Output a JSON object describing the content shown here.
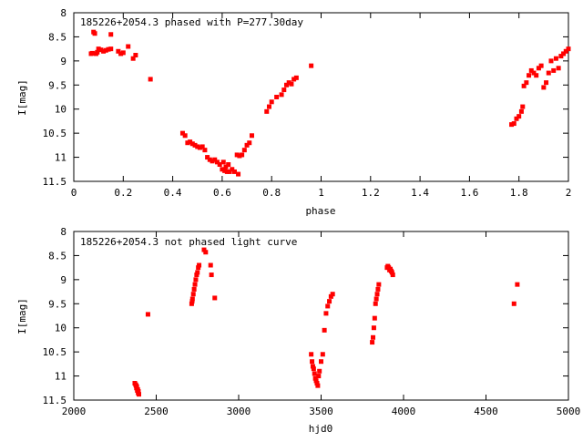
{
  "chart_data": [
    {
      "type": "scatter",
      "title": "185226+2054.3 phased with P=277.30day",
      "xlabel": "phase",
      "ylabel": "I[mag]",
      "xlim": [
        0,
        2
      ],
      "ylim": [
        11.5,
        8
      ],
      "y_inverted": true,
      "grid": false,
      "legend": "none",
      "xticks": [
        "0",
        "0.2",
        "0.4",
        "0.6",
        "0.8",
        "1",
        "1.2",
        "1.4",
        "1.6",
        "1.8",
        "2"
      ],
      "xtick_values": [
        0,
        0.2,
        0.4,
        0.6,
        0.8,
        1,
        1.2,
        1.4,
        1.6,
        1.8,
        2
      ],
      "yticks": [
        "8",
        "8.5",
        "9",
        "9.5",
        "10",
        "10.5",
        "11",
        "11.5"
      ],
      "ytick_values": [
        8,
        8.5,
        9,
        9.5,
        10,
        10.5,
        11,
        11.5
      ],
      "marker_color": "#ff0000",
      "series": [
        {
          "x": [
            0.07,
            0.075,
            0.08,
            0.085,
            0.09,
            0.095,
            0.1,
            0.11,
            0.12,
            0.13,
            0.14,
            0.15,
            0.15,
            0.18,
            0.19,
            0.2,
            0.22,
            0.24,
            0.25,
            0.31,
            0.44,
            0.45,
            0.46,
            0.47,
            0.48,
            0.49,
            0.5,
            0.51,
            0.52,
            0.53,
            0.54,
            0.55,
            0.56,
            0.57,
            0.58,
            0.59,
            0.6,
            0.605,
            0.61,
            0.615,
            0.62,
            0.625,
            0.63,
            0.64,
            0.65,
            0.66,
            0.665,
            0.67,
            0.68,
            0.69,
            0.7,
            0.71,
            0.72,
            0.78,
            0.79,
            0.8,
            0.82,
            0.84,
            0.85,
            0.86,
            0.87,
            0.88,
            0.89,
            0.9,
            0.96,
            1.77,
            1.78,
            1.79,
            1.8,
            1.81,
            1.815,
            1.82,
            1.83,
            1.84,
            1.85,
            1.86,
            1.87,
            1.88,
            1.89,
            1.9,
            1.91,
            1.92,
            1.93,
            1.94,
            1.95,
            1.96,
            1.97,
            1.98,
            1.99,
            2.0
          ],
          "y": [
            8.85,
            8.84,
            8.4,
            8.43,
            8.85,
            8.82,
            8.75,
            8.77,
            8.8,
            8.78,
            8.76,
            8.45,
            8.75,
            8.8,
            8.85,
            8.83,
            8.7,
            8.95,
            8.88,
            9.38,
            10.5,
            10.55,
            10.7,
            10.68,
            10.72,
            10.75,
            10.78,
            10.8,
            10.78,
            10.85,
            11.0,
            11.05,
            11.08,
            11.05,
            11.1,
            11.15,
            11.25,
            11.1,
            11.28,
            11.2,
            11.3,
            11.15,
            11.3,
            11.25,
            11.3,
            10.95,
            11.35,
            10.97,
            10.95,
            10.85,
            10.75,
            10.7,
            10.55,
            10.05,
            9.95,
            9.85,
            9.75,
            9.7,
            9.6,
            9.5,
            9.45,
            9.48,
            9.38,
            9.35,
            9.1,
            10.32,
            10.3,
            10.2,
            10.15,
            10.05,
            9.95,
            9.52,
            9.45,
            9.3,
            9.2,
            9.25,
            9.3,
            9.15,
            9.1,
            9.55,
            9.45,
            9.25,
            9.0,
            9.2,
            8.95,
            9.15,
            8.9,
            8.85,
            8.8,
            8.75
          ]
        }
      ]
    },
    {
      "type": "scatter",
      "title": "185226+2054.3 not phased light curve",
      "xlabel": "hjd0",
      "ylabel": "I[mag]",
      "xlim": [
        2000,
        5000
      ],
      "ylim": [
        11.5,
        8
      ],
      "y_inverted": true,
      "grid": false,
      "legend": "none",
      "xticks": [
        "2000",
        "2500",
        "3000",
        "3500",
        "4000",
        "4500",
        "5000"
      ],
      "xtick_values": [
        2000,
        2500,
        3000,
        3500,
        4000,
        4500,
        5000
      ],
      "yticks": [
        "8",
        "8.5",
        "9",
        "9.5",
        "10",
        "10.5",
        "11",
        "11.5"
      ],
      "ytick_values": [
        8,
        8.5,
        9,
        9.5,
        10,
        10.5,
        11,
        11.5
      ],
      "marker_color": "#ff0000",
      "series": [
        {
          "x": [
            2370,
            2375,
            2378,
            2380,
            2382,
            2385,
            2388,
            2390,
            2392,
            2395,
            2450,
            2715,
            2718,
            2720,
            2725,
            2730,
            2735,
            2740,
            2745,
            2750,
            2755,
            2760,
            2790,
            2800,
            2830,
            2835,
            2855,
            3440,
            3445,
            3450,
            3455,
            3460,
            3465,
            3470,
            3475,
            3480,
            3485,
            3490,
            3500,
            3510,
            3520,
            3530,
            3540,
            3550,
            3560,
            3570,
            3810,
            3815,
            3820,
            3825,
            3830,
            3835,
            3840,
            3845,
            3850,
            3900,
            3905,
            3910,
            3915,
            3920,
            3925,
            3930,
            3935,
            4670,
            4690
          ],
          "y": [
            11.15,
            11.18,
            11.2,
            11.25,
            11.22,
            11.3,
            11.28,
            11.35,
            11.32,
            11.38,
            9.72,
            9.5,
            9.45,
            9.4,
            9.3,
            9.2,
            9.1,
            9.0,
            8.9,
            8.85,
            8.75,
            8.7,
            8.38,
            8.43,
            8.7,
            8.9,
            9.38,
            10.55,
            10.7,
            10.8,
            10.85,
            10.95,
            11.05,
            11.1,
            11.15,
            11.2,
            11.0,
            10.9,
            10.7,
            10.55,
            10.05,
            9.7,
            9.55,
            9.45,
            9.35,
            9.3,
            10.3,
            10.2,
            10.0,
            9.8,
            9.5,
            9.4,
            9.3,
            9.2,
            9.1,
            8.75,
            8.72,
            8.75,
            8.8,
            8.78,
            8.82,
            8.85,
            8.9,
            9.5,
            9.1
          ]
        }
      ]
    }
  ]
}
